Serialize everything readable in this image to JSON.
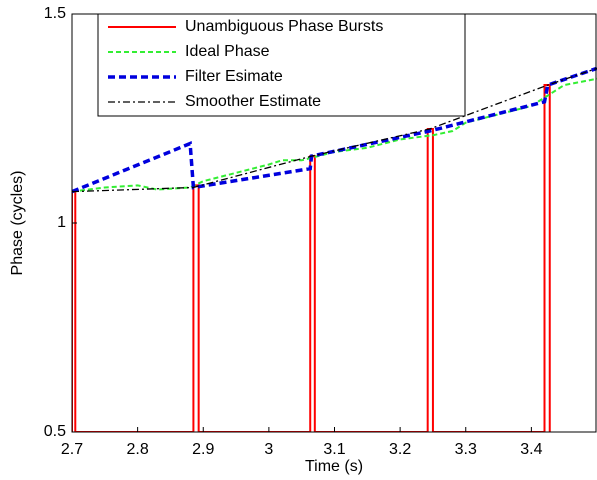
{
  "chart_data": {
    "type": "line",
    "xlabel": "Time (s)",
    "ylabel": "Phase (cycles)",
    "xlim": [
      2.7,
      3.5
    ],
    "ylim": [
      0.5,
      1.5
    ],
    "xticks": [
      2.7,
      2.8,
      2.9,
      3,
      3.1,
      3.2,
      3.3,
      3.4
    ],
    "yticks": [
      0.5,
      1,
      1.5
    ],
    "legend": "upper left",
    "series": [
      {
        "name": "Unambiguous Phase Bursts",
        "color": "#ff0000",
        "style": "solid",
        "x": [
          2.7,
          2.7,
          2.705,
          2.705,
          2.885,
          2.885,
          2.893,
          2.893,
          3.063,
          3.063,
          3.07,
          3.07,
          3.242,
          3.242,
          3.25,
          3.25,
          3.42,
          3.42,
          3.428,
          3.428
        ],
        "values": [
          0.5,
          1.075,
          1.075,
          0.5,
          0.5,
          1.09,
          1.09,
          0.5,
          0.5,
          1.16,
          1.16,
          0.5,
          0.5,
          1.225,
          1.225,
          0.5,
          0.5,
          1.33,
          1.33,
          0.5
        ]
      },
      {
        "name": "Ideal Phase",
        "color": "#33ee33",
        "style": "dashed",
        "x": [
          2.7,
          2.75,
          2.8,
          2.83,
          2.88,
          2.9,
          2.95,
          3.0,
          3.02,
          3.05,
          3.1,
          3.15,
          3.2,
          3.25,
          3.28,
          3.3,
          3.35,
          3.4,
          3.43,
          3.45,
          3.5
        ],
        "values": [
          1.075,
          1.085,
          1.09,
          1.08,
          1.085,
          1.1,
          1.12,
          1.14,
          1.15,
          1.15,
          1.17,
          1.18,
          1.2,
          1.21,
          1.22,
          1.24,
          1.26,
          1.28,
          1.31,
          1.33,
          1.345
        ]
      },
      {
        "name": "Filter Esimate",
        "color": "#0000dd",
        "style": "thick-dashed",
        "x": [
          2.7,
          2.88,
          2.885,
          3.063,
          3.065,
          3.245,
          3.42,
          3.425,
          3.5
        ],
        "values": [
          1.075,
          1.19,
          1.085,
          1.13,
          1.16,
          1.22,
          1.29,
          1.33,
          1.37
        ]
      },
      {
        "name": "Smoother Estimate",
        "color": "#000000",
        "style": "dash-dot",
        "x": [
          2.7,
          2.885,
          3.065,
          3.245,
          3.425,
          3.5
        ],
        "values": [
          1.075,
          1.085,
          1.16,
          1.225,
          1.33,
          1.37
        ]
      }
    ]
  }
}
